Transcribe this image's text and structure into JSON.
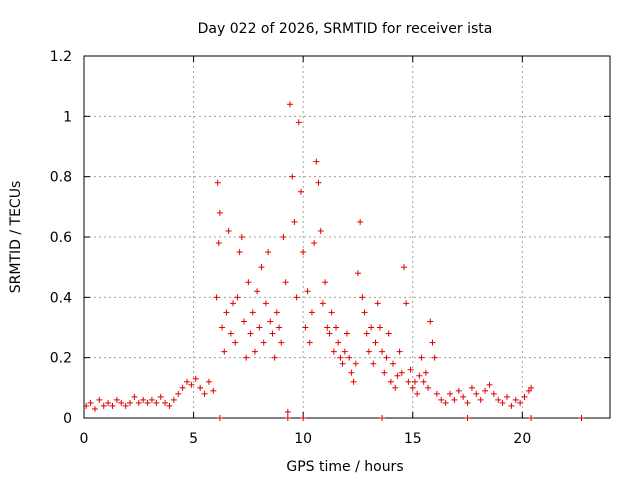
{
  "chart_data": {
    "type": "scatter",
    "title": "Day 022 of 2026, SRMTID for receiver ista",
    "xlabel": "GPS time / hours",
    "ylabel": "SRMTID / TECUs",
    "xlim": [
      0,
      24
    ],
    "ylim": [
      0,
      1.2
    ],
    "x_ticks": [
      0,
      5,
      10,
      15,
      20
    ],
    "x_tick_labels": [
      "0",
      "5",
      "10",
      "15",
      "20"
    ],
    "y_ticks": [
      0,
      0.2,
      0.4,
      0.6,
      0.8,
      1.0,
      1.2
    ],
    "y_tick_labels": [
      "0",
      "0.2",
      "0.4",
      "0.6",
      "0.8",
      "1",
      "1.2"
    ],
    "grid": true,
    "series": [
      {
        "name": "SRMTID",
        "color": "#e00000",
        "marker": "plus",
        "points": [
          [
            0.1,
            0.04
          ],
          [
            0.3,
            0.05
          ],
          [
            0.5,
            0.03
          ],
          [
            0.7,
            0.06
          ],
          [
            0.9,
            0.04
          ],
          [
            1.1,
            0.05
          ],
          [
            1.3,
            0.04
          ],
          [
            1.5,
            0.06
          ],
          [
            1.7,
            0.05
          ],
          [
            1.9,
            0.04
          ],
          [
            2.1,
            0.05
          ],
          [
            2.3,
            0.07
          ],
          [
            2.5,
            0.05
          ],
          [
            2.7,
            0.06
          ],
          [
            2.9,
            0.05
          ],
          [
            3.1,
            0.06
          ],
          [
            3.3,
            0.05
          ],
          [
            3.5,
            0.07
          ],
          [
            3.7,
            0.05
          ],
          [
            3.9,
            0.04
          ],
          [
            4.1,
            0.06
          ],
          [
            4.3,
            0.08
          ],
          [
            4.5,
            0.1
          ],
          [
            4.7,
            0.12
          ],
          [
            4.9,
            0.11
          ],
          [
            5.1,
            0.13
          ],
          [
            5.3,
            0.1
          ],
          [
            5.5,
            0.08
          ],
          [
            5.7,
            0.12
          ],
          [
            5.9,
            0.09
          ],
          [
            6.05,
            0.4
          ],
          [
            6.1,
            0.78
          ],
          [
            6.15,
            0.58
          ],
          [
            6.2,
            0.68
          ],
          [
            6.3,
            0.3
          ],
          [
            6.4,
            0.22
          ],
          [
            6.5,
            0.35
          ],
          [
            6.6,
            0.62
          ],
          [
            6.7,
            0.28
          ],
          [
            6.8,
            0.38
          ],
          [
            6.9,
            0.25
          ],
          [
            7.0,
            0.4
          ],
          [
            7.1,
            0.55
          ],
          [
            7.2,
            0.6
          ],
          [
            7.3,
            0.32
          ],
          [
            7.4,
            0.2
          ],
          [
            7.5,
            0.45
          ],
          [
            7.6,
            0.28
          ],
          [
            7.7,
            0.35
          ],
          [
            7.8,
            0.22
          ],
          [
            7.9,
            0.42
          ],
          [
            8.0,
            0.3
          ],
          [
            8.1,
            0.5
          ],
          [
            8.2,
            0.25
          ],
          [
            8.3,
            0.38
          ],
          [
            8.4,
            0.55
          ],
          [
            8.5,
            0.32
          ],
          [
            8.6,
            0.28
          ],
          [
            8.7,
            0.2
          ],
          [
            8.8,
            0.35
          ],
          [
            8.9,
            0.3
          ],
          [
            9.0,
            0.25
          ],
          [
            9.1,
            0.6
          ],
          [
            9.2,
            0.45
          ],
          [
            9.3,
            0.02
          ],
          [
            9.4,
            1.04
          ],
          [
            9.5,
            0.8
          ],
          [
            9.6,
            0.65
          ],
          [
            9.7,
            0.4
          ],
          [
            9.8,
            0.98
          ],
          [
            9.9,
            0.75
          ],
          [
            10.0,
            0.55
          ],
          [
            10.1,
            0.3
          ],
          [
            10.2,
            0.42
          ],
          [
            10.3,
            0.25
          ],
          [
            10.4,
            0.35
          ],
          [
            10.5,
            0.58
          ],
          [
            10.6,
            0.85
          ],
          [
            10.7,
            0.78
          ],
          [
            10.8,
            0.62
          ],
          [
            10.9,
            0.38
          ],
          [
            11.0,
            0.45
          ],
          [
            11.1,
            0.3
          ],
          [
            11.2,
            0.28
          ],
          [
            11.3,
            0.35
          ],
          [
            11.4,
            0.22
          ],
          [
            11.5,
            0.3
          ],
          [
            11.6,
            0.25
          ],
          [
            11.7,
            0.2
          ],
          [
            11.8,
            0.18
          ],
          [
            11.9,
            0.22
          ],
          [
            12.0,
            0.28
          ],
          [
            12.1,
            0.2
          ],
          [
            12.2,
            0.15
          ],
          [
            12.3,
            0.12
          ],
          [
            12.4,
            0.18
          ],
          [
            12.5,
            0.48
          ],
          [
            12.6,
            0.65
          ],
          [
            12.7,
            0.4
          ],
          [
            12.8,
            0.35
          ],
          [
            12.9,
            0.28
          ],
          [
            13.0,
            0.22
          ],
          [
            13.1,
            0.3
          ],
          [
            13.2,
            0.18
          ],
          [
            13.3,
            0.25
          ],
          [
            13.4,
            0.38
          ],
          [
            13.5,
            0.3
          ],
          [
            13.6,
            0.22
          ],
          [
            13.7,
            0.15
          ],
          [
            13.8,
            0.2
          ],
          [
            13.9,
            0.28
          ],
          [
            14.0,
            0.12
          ],
          [
            14.1,
            0.18
          ],
          [
            14.2,
            0.1
          ],
          [
            14.3,
            0.14
          ],
          [
            14.4,
            0.22
          ],
          [
            14.5,
            0.15
          ],
          [
            14.6,
            0.5
          ],
          [
            14.7,
            0.38
          ],
          [
            14.8,
            0.12
          ],
          [
            14.9,
            0.16
          ],
          [
            15.0,
            0.1
          ],
          [
            15.1,
            0.12
          ],
          [
            15.2,
            0.08
          ],
          [
            15.3,
            0.14
          ],
          [
            15.4,
            0.2
          ],
          [
            15.5,
            0.12
          ],
          [
            15.6,
            0.15
          ],
          [
            15.7,
            0.1
          ],
          [
            15.8,
            0.32
          ],
          [
            15.9,
            0.25
          ],
          [
            16.0,
            0.2
          ],
          [
            16.1,
            0.08
          ],
          [
            16.3,
            0.06
          ],
          [
            16.5,
            0.05
          ],
          [
            16.7,
            0.08
          ],
          [
            16.9,
            0.06
          ],
          [
            17.1,
            0.09
          ],
          [
            17.3,
            0.07
          ],
          [
            17.5,
            0.05
          ],
          [
            17.7,
            0.1
          ],
          [
            17.9,
            0.08
          ],
          [
            18.1,
            0.06
          ],
          [
            18.3,
            0.09
          ],
          [
            18.5,
            0.11
          ],
          [
            18.7,
            0.08
          ],
          [
            18.9,
            0.06
          ],
          [
            19.1,
            0.05
          ],
          [
            19.3,
            0.07
          ],
          [
            19.5,
            0.04
          ],
          [
            19.7,
            0.06
          ],
          [
            19.9,
            0.05
          ],
          [
            20.1,
            0.07
          ],
          [
            20.3,
            0.09
          ],
          [
            20.4,
            0.1
          ],
          [
            6.2,
            0.0
          ],
          [
            9.3,
            0.0
          ],
          [
            10.0,
            0.0
          ],
          [
            13.6,
            0.0
          ],
          [
            17.5,
            0.0
          ],
          [
            20.4,
            0.0
          ],
          [
            22.7,
            0.0
          ]
        ]
      }
    ]
  }
}
